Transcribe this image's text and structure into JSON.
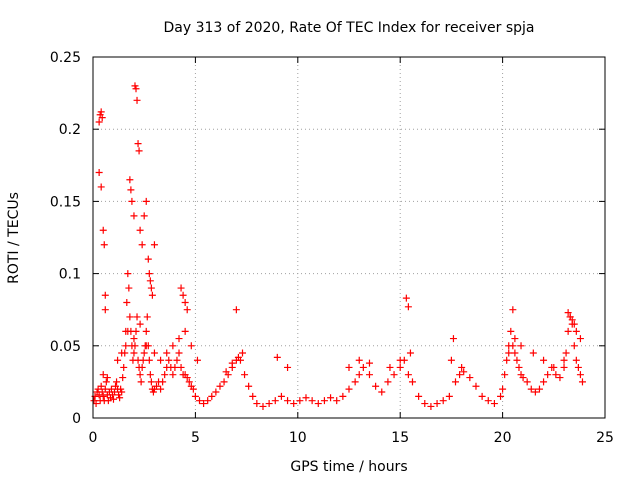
{
  "chart_data": {
    "type": "scatter",
    "title": "Day 313 of 2020, Rate Of TEC Index for receiver spja",
    "xlabel": "GPS time / hours",
    "ylabel": "ROTI / TECUs",
    "xlim": [
      0,
      25
    ],
    "ylim": [
      0,
      0.25
    ],
    "x_ticks": [
      0,
      5,
      10,
      15,
      20,
      25
    ],
    "x_tick_labels": [
      "0",
      "5",
      "10",
      "15",
      "20",
      "25"
    ],
    "y_ticks": [
      0,
      0.05,
      0.1,
      0.15,
      0.2,
      0.25
    ],
    "y_tick_labels": [
      "0",
      "0.05",
      "0.1",
      "0.15",
      "0.2",
      "0.25"
    ],
    "grid": true,
    "legend": "none",
    "marker": "plus",
    "color": "#ff0000",
    "series": [
      {
        "x": [
          0.05,
          0.1,
          0.15,
          0.2,
          0.25,
          0.3,
          0.35,
          0.4,
          0.45,
          0.5,
          0.55,
          0.6,
          0.65,
          0.7,
          0.75,
          0.8,
          0.85,
          0.9,
          0.95,
          1.0,
          1.05,
          1.1,
          1.15,
          1.2,
          1.25,
          1.3,
          1.35,
          1.4,
          1.45,
          1.5,
          1.55,
          1.6,
          1.65,
          1.7,
          1.75,
          1.8,
          1.85,
          1.9,
          1.95,
          2.0,
          2.05,
          2.1,
          2.15,
          2.2,
          2.25,
          2.3,
          2.35,
          2.4,
          2.45,
          2.5,
          2.55,
          2.6,
          2.65,
          2.7,
          2.75,
          2.8,
          2.85,
          2.9,
          2.95,
          3.0,
          3.1,
          3.2,
          3.3,
          3.4,
          3.5,
          3.6,
          3.7,
          3.8,
          3.9,
          4.0,
          4.1,
          4.2,
          4.3,
          4.4,
          4.5,
          4.6,
          4.7,
          4.8,
          4.9,
          5.0,
          5.2,
          5.4,
          5.6,
          5.8,
          6.0,
          6.2,
          6.4,
          6.6,
          6.8,
          7.0,
          7.1,
          7.2,
          7.4,
          7.6,
          7.8,
          8.0,
          8.3,
          8.6,
          8.9,
          9.2,
          9.5,
          9.8,
          10.1,
          10.4,
          10.7,
          11.0,
          11.3,
          11.6,
          11.9,
          12.2,
          12.5,
          12.8,
          13.0,
          13.2,
          13.5,
          13.8,
          14.1,
          14.4,
          14.7,
          15.0,
          15.2,
          15.4,
          15.6,
          15.9,
          16.2,
          16.5,
          16.8,
          17.1,
          17.4,
          17.7,
          17.9,
          18.1,
          18.4,
          18.7,
          19.0,
          19.3,
          19.6,
          19.9,
          20.0,
          20.1,
          20.2,
          20.3,
          20.4,
          20.5,
          20.6,
          20.7,
          20.8,
          20.9,
          21.0,
          21.2,
          21.4,
          21.6,
          21.8,
          22.0,
          22.2,
          22.4,
          22.6,
          22.8,
          23.0,
          23.1,
          23.2,
          23.3,
          23.4,
          23.5,
          23.6,
          23.7,
          23.8,
          23.9,
          0.3,
          0.35,
          0.4,
          0.45,
          0.3,
          0.4,
          0.5,
          0.55,
          0.6,
          0.6,
          1.8,
          1.85,
          1.9,
          2.0,
          2.05,
          2.1,
          2.15,
          2.2,
          2.25,
          2.3,
          2.4,
          2.5,
          2.6,
          2.7,
          2.75,
          2.8,
          2.85,
          2.9,
          3.0,
          4.3,
          4.4,
          4.5,
          4.6,
          7.0,
          15.3,
          15.4,
          17.6,
          20.5,
          23.2,
          23.3,
          23.4,
          23.5,
          0.5,
          0.7,
          1.2,
          1.4,
          1.6,
          1.7,
          2.0,
          2.3,
          2.6,
          3.0,
          3.3,
          3.6,
          3.9,
          4.2,
          4.5,
          4.8,
          5.1,
          6.5,
          6.8,
          7.3,
          9.0,
          9.5,
          12.5,
          13.0,
          13.5,
          14.5,
          15.0,
          15.5,
          17.5,
          18.0,
          20.3,
          20.6,
          20.9,
          21.5,
          22.0,
          22.5,
          23.0,
          23.6,
          23.8
        ],
        "y": [
          0.012,
          0.015,
          0.01,
          0.018,
          0.02,
          0.016,
          0.012,
          0.022,
          0.018,
          0.015,
          0.012,
          0.02,
          0.025,
          0.016,
          0.012,
          0.018,
          0.014,
          0.02,
          0.016,
          0.013,
          0.018,
          0.022,
          0.025,
          0.02,
          0.016,
          0.014,
          0.02,
          0.018,
          0.028,
          0.035,
          0.045,
          0.06,
          0.08,
          0.1,
          0.09,
          0.07,
          0.06,
          0.05,
          0.04,
          0.045,
          0.05,
          0.06,
          0.07,
          0.04,
          0.035,
          0.03,
          0.025,
          0.035,
          0.04,
          0.045,
          0.05,
          0.06,
          0.07,
          0.05,
          0.04,
          0.03,
          0.025,
          0.02,
          0.018,
          0.02,
          0.022,
          0.025,
          0.02,
          0.025,
          0.03,
          0.035,
          0.04,
          0.035,
          0.03,
          0.035,
          0.04,
          0.045,
          0.035,
          0.03,
          0.03,
          0.028,
          0.025,
          0.022,
          0.02,
          0.015,
          0.012,
          0.01,
          0.012,
          0.015,
          0.018,
          0.022,
          0.025,
          0.03,
          0.035,
          0.04,
          0.042,
          0.04,
          0.03,
          0.022,
          0.015,
          0.01,
          0.008,
          0.01,
          0.012,
          0.015,
          0.012,
          0.01,
          0.012,
          0.014,
          0.012,
          0.01,
          0.012,
          0.014,
          0.012,
          0.015,
          0.02,
          0.025,
          0.03,
          0.035,
          0.03,
          0.022,
          0.018,
          0.025,
          0.03,
          0.035,
          0.04,
          0.03,
          0.025,
          0.015,
          0.01,
          0.008,
          0.01,
          0.012,
          0.015,
          0.025,
          0.03,
          0.032,
          0.028,
          0.022,
          0.015,
          0.012,
          0.01,
          0.015,
          0.02,
          0.03,
          0.04,
          0.05,
          0.06,
          0.05,
          0.045,
          0.04,
          0.035,
          0.03,
          0.028,
          0.025,
          0.02,
          0.018,
          0.02,
          0.025,
          0.03,
          0.035,
          0.03,
          0.028,
          0.035,
          0.045,
          0.06,
          0.07,
          0.065,
          0.05,
          0.04,
          0.035,
          0.03,
          0.025,
          0.205,
          0.21,
          0.212,
          0.208,
          0.17,
          0.16,
          0.13,
          0.12,
          0.085,
          0.075,
          0.165,
          0.158,
          0.15,
          0.14,
          0.23,
          0.228,
          0.22,
          0.19,
          0.185,
          0.13,
          0.12,
          0.14,
          0.15,
          0.11,
          0.1,
          0.095,
          0.09,
          0.085,
          0.12,
          0.09,
          0.085,
          0.08,
          0.075,
          0.075,
          0.083,
          0.077,
          0.055,
          0.075,
          0.073,
          0.07,
          0.068,
          0.065,
          0.03,
          0.028,
          0.04,
          0.045,
          0.05,
          0.06,
          0.055,
          0.065,
          0.05,
          0.045,
          0.04,
          0.045,
          0.05,
          0.055,
          0.06,
          0.05,
          0.04,
          0.032,
          0.038,
          0.045,
          0.042,
          0.035,
          0.035,
          0.04,
          0.038,
          0.035,
          0.04,
          0.045,
          0.04,
          0.035,
          0.045,
          0.055,
          0.05,
          0.045,
          0.04,
          0.035,
          0.04,
          0.06,
          0.055
        ]
      }
    ]
  }
}
